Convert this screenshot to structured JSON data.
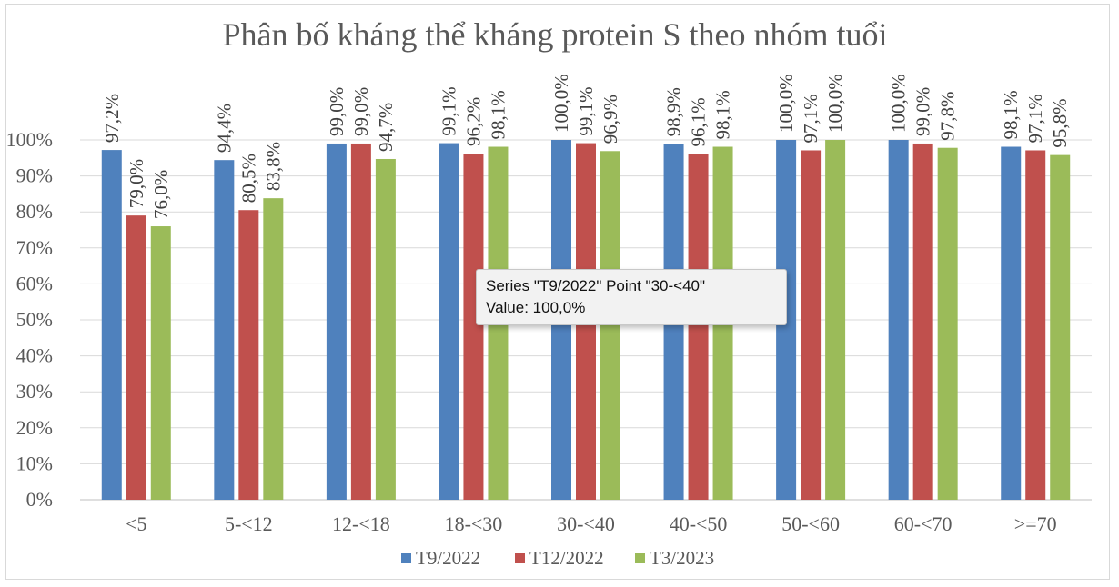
{
  "chart_data": {
    "type": "bar",
    "title": "Phân bố kháng thể kháng protein S theo nhóm tuổi",
    "xlabel": "",
    "ylabel": "",
    "categories": [
      "<5",
      "5-<12",
      "12-<18",
      "18-<30",
      "30-<40",
      "40-<50",
      "50-<60",
      "60-<70",
      ">=70"
    ],
    "ylim": [
      0,
      100
    ],
    "yticks": [
      "0%",
      "10%",
      "20%",
      "30%",
      "40%",
      "50%",
      "60%",
      "70%",
      "80%",
      "90%",
      "100%"
    ],
    "grid": true,
    "legend_position": "bottom",
    "series": [
      {
        "name": "T9/2022",
        "color": "#4f81bd",
        "values": [
          97.2,
          94.4,
          99.0,
          99.1,
          100.0,
          98.9,
          100.0,
          100.0,
          98.1
        ],
        "labels": [
          "97,2%",
          "94,4%",
          "99,0%",
          "99,1%",
          "100,0%",
          "98,9%",
          "100,0%",
          "100,0%",
          "98,1%"
        ]
      },
      {
        "name": "T12/2022",
        "color": "#c0504d",
        "values": [
          79.0,
          80.5,
          99.0,
          96.2,
          99.1,
          96.1,
          97.1,
          99.0,
          97.1
        ],
        "labels": [
          "79,0%",
          "80,5%",
          "99,0%",
          "96,2%",
          "99,1%",
          "96,1%",
          "97,1%",
          "99,0%",
          "97,1%"
        ]
      },
      {
        "name": "T3/2023",
        "color": "#9bbb59",
        "values": [
          76.0,
          83.8,
          94.7,
          98.1,
          96.9,
          98.1,
          100.0,
          97.8,
          95.8
        ],
        "labels": [
          "76,0%",
          "83,8%",
          "94,7%",
          "98,1%",
          "96,9%",
          "98,1%",
          "100,0%",
          "97,8%",
          "95,8%"
        ]
      }
    ]
  },
  "tooltip": {
    "line1": "Series \"T9/2022\" Point \"30-<40\"",
    "line2": "Value: 100,0%"
  }
}
